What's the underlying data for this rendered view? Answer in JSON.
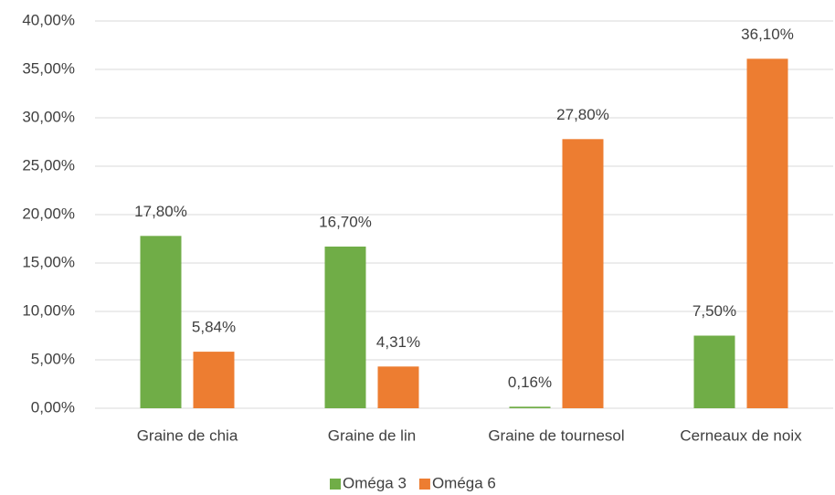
{
  "chart_data": {
    "type": "bar",
    "categories": [
      "Graine de chia",
      "Graine de lin",
      "Graine de tournesol",
      "Cerneaux de noix"
    ],
    "series": [
      {
        "name": "Oméga 3",
        "color": "#70ad47",
        "values": [
          17.8,
          16.7,
          0.16,
          7.5
        ],
        "value_labels": [
          "17,80%",
          "16,70%",
          "0,16%",
          "7,50%"
        ]
      },
      {
        "name": "Oméga 6",
        "color": "#ed7d31",
        "values": [
          5.84,
          4.31,
          27.8,
          36.1
        ],
        "value_labels": [
          "5,84%",
          "4,31%",
          "27,80%",
          "36,10%"
        ]
      }
    ],
    "ylim": [
      0,
      40
    ],
    "yticks": [
      {
        "value": 0,
        "label": "0,00%"
      },
      {
        "value": 5,
        "label": "5,00%"
      },
      {
        "value": 10,
        "label": "10,00%"
      },
      {
        "value": 15,
        "label": "15,00%"
      },
      {
        "value": 20,
        "label": "20,00%"
      },
      {
        "value": 25,
        "label": "25,00%"
      },
      {
        "value": 30,
        "label": "30,00%"
      },
      {
        "value": 35,
        "label": "35,00%"
      },
      {
        "value": 40,
        "label": "40,00%"
      }
    ],
    "grid": true,
    "legend": "bottom"
  }
}
